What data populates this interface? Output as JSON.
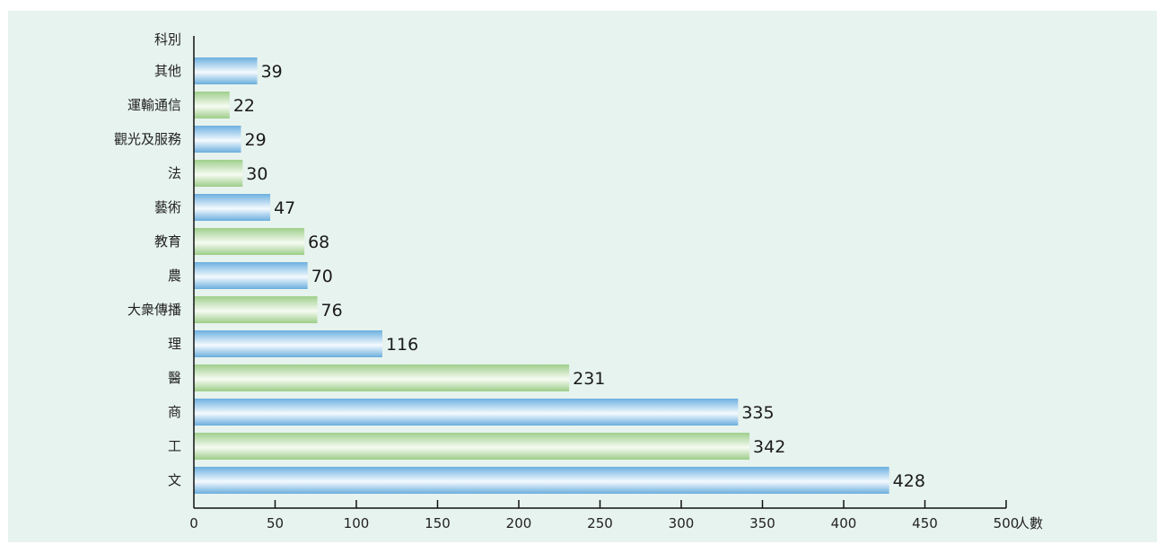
{
  "chart_data": {
    "type": "bar",
    "orientation": "horizontal",
    "ylabel": "科別",
    "xlabel": "人數",
    "categories": [
      "其他",
      "運輸通信",
      "觀光及服務",
      "法",
      "藝術",
      "教育",
      "農",
      "大衆傳播",
      "理",
      "醫",
      "商",
      "工",
      "文"
    ],
    "values": [
      39,
      22,
      29,
      30,
      47,
      68,
      70,
      76,
      116,
      231,
      335,
      342,
      428
    ],
    "xlim": [
      0,
      500
    ],
    "xticks": [
      "0",
      "50",
      "100",
      "150",
      "200",
      "250",
      "300",
      "350",
      "400",
      "450",
      "500"
    ],
    "grid": false,
    "legend": "none",
    "colors": {
      "blue": "#7fb9e0",
      "green": "#a9d49a",
      "background": "#e7f3ee"
    }
  }
}
